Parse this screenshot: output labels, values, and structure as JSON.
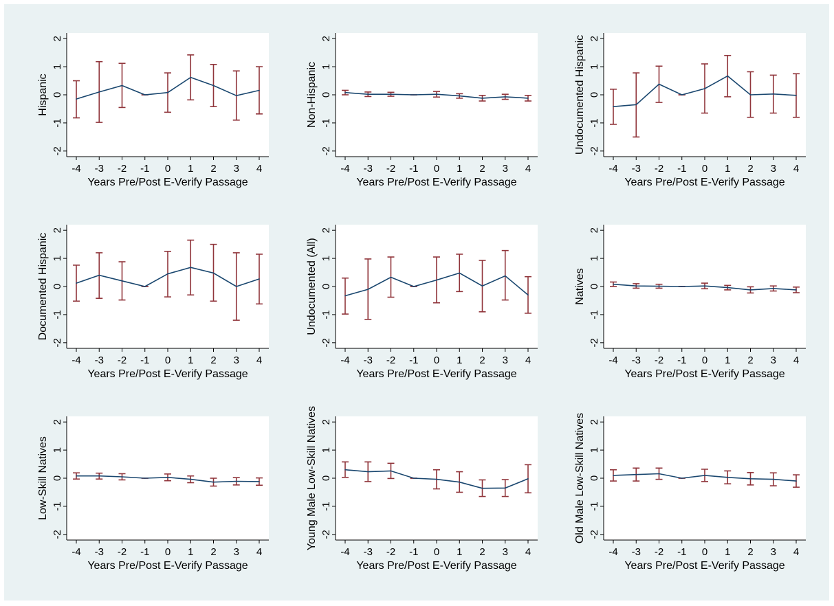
{
  "colors": {
    "outer_background": "#ffffff",
    "graph_region": "#eaf2f3",
    "plot_region": "#ffffff",
    "line": "#1a476f",
    "error_bars": "#90353b",
    "text": "#000000"
  },
  "chart_data": [
    {
      "type": "line",
      "error_bars": true,
      "ylabel": "Hispanic",
      "xlabel": "Years Pre/Post E-Verify Passage",
      "x": [
        -4,
        -3,
        -2,
        -1,
        0,
        1,
        2,
        3,
        4
      ],
      "x_tick_labels": [
        "-4",
        "-3",
        "-2",
        "-1",
        "0",
        "1",
        "2",
        "3",
        "4"
      ],
      "y_tick_values": [
        2,
        1,
        0,
        -1,
        -2
      ],
      "y_tick_labels": [
        "2",
        "1",
        "0",
        "-1",
        "-2"
      ],
      "ylim": [
        -2.2,
        2.2
      ],
      "grid": false,
      "values": [
        -0.15,
        0.1,
        0.33,
        0.0,
        0.08,
        0.62,
        0.33,
        -0.03,
        0.16
      ],
      "ci_low": [
        -0.82,
        -0.98,
        -0.45,
        0.0,
        -0.62,
        -0.18,
        -0.42,
        -0.9,
        -0.68
      ],
      "ci_high": [
        0.5,
        1.18,
        1.12,
        0.0,
        0.78,
        1.42,
        1.08,
        0.85,
        1.0
      ]
    },
    {
      "type": "line",
      "error_bars": true,
      "ylabel": "Non-Hispanic",
      "xlabel": "Years Pre/Post E-Verify Passage",
      "x": [
        -4,
        -3,
        -2,
        -1,
        0,
        1,
        2,
        3,
        4
      ],
      "x_tick_labels": [
        "-4",
        "-3",
        "-2",
        "-1",
        "0",
        "1",
        "2",
        "3",
        "4"
      ],
      "y_tick_values": [
        2,
        1,
        0,
        -1,
        -2
      ],
      "y_tick_labels": [
        "2",
        "1",
        "0",
        "-1",
        "-2"
      ],
      "ylim": [
        -2.2,
        2.2
      ],
      "grid": false,
      "values": [
        0.08,
        0.02,
        0.02,
        0.0,
        0.02,
        -0.04,
        -0.12,
        -0.07,
        -0.12
      ],
      "ci_low": [
        0.0,
        -0.06,
        -0.05,
        0.0,
        -0.08,
        -0.12,
        -0.22,
        -0.16,
        -0.22
      ],
      "ci_high": [
        0.16,
        0.1,
        0.09,
        0.0,
        0.12,
        0.04,
        -0.02,
        0.02,
        -0.02
      ]
    },
    {
      "type": "line",
      "error_bars": true,
      "ylabel": "Undocumented Hispanic",
      "xlabel": "Years Pre/Post E-Verify Passage",
      "x": [
        -4,
        -3,
        -2,
        -1,
        0,
        1,
        2,
        3,
        4
      ],
      "x_tick_labels": [
        "-4",
        "-3",
        "-2",
        "-1",
        "0",
        "1",
        "2",
        "3",
        "4"
      ],
      "y_tick_values": [
        2,
        1,
        0,
        -1,
        -2
      ],
      "y_tick_labels": [
        "2",
        "1",
        "0",
        "-1",
        "-2"
      ],
      "ylim": [
        -2.2,
        2.2
      ],
      "grid": false,
      "values": [
        -0.42,
        -0.35,
        0.38,
        0.0,
        0.22,
        0.67,
        0.0,
        0.03,
        -0.02
      ],
      "ci_low": [
        -1.05,
        -1.5,
        -0.27,
        0.0,
        -0.65,
        -0.07,
        -0.8,
        -0.65,
        -0.8
      ],
      "ci_high": [
        0.2,
        0.78,
        1.02,
        0.0,
        1.1,
        1.4,
        0.82,
        0.7,
        0.75
      ]
    },
    {
      "type": "line",
      "error_bars": true,
      "ylabel": "Documented Hispanic",
      "xlabel": "Years Pre/Post E-Verify Passage",
      "x": [
        -4,
        -3,
        -2,
        -1,
        0,
        1,
        2,
        3,
        4
      ],
      "x_tick_labels": [
        "-4",
        "-3",
        "-2",
        "-1",
        "0",
        "1",
        "2",
        "3",
        "4"
      ],
      "y_tick_values": [
        2,
        1,
        0,
        -1,
        -2
      ],
      "y_tick_labels": [
        "2",
        "1",
        "0",
        "-1",
        "-2"
      ],
      "ylim": [
        -2.2,
        2.2
      ],
      "grid": false,
      "values": [
        0.12,
        0.4,
        0.2,
        0.0,
        0.45,
        0.68,
        0.48,
        0.0,
        0.27
      ],
      "ci_low": [
        -0.52,
        -0.42,
        -0.48,
        0.0,
        -0.37,
        -0.3,
        -0.52,
        -1.2,
        -0.62
      ],
      "ci_high": [
        0.76,
        1.2,
        0.88,
        0.0,
        1.25,
        1.65,
        1.5,
        1.2,
        1.15
      ]
    },
    {
      "type": "line",
      "error_bars": true,
      "ylabel": "Undocumented (All)",
      "xlabel": "Years Pre/Post E-Verify Passage",
      "x": [
        -4,
        -3,
        -2,
        -1,
        0,
        1,
        2,
        3,
        4
      ],
      "x_tick_labels": [
        "-4",
        "-3",
        "-2",
        "-1",
        "0",
        "1",
        "2",
        "3",
        "4"
      ],
      "y_tick_values": [
        2,
        1,
        0,
        -1,
        -2
      ],
      "y_tick_labels": [
        "2",
        "1",
        "0",
        "-1",
        "-2"
      ],
      "ylim": [
        -2.2,
        2.2
      ],
      "grid": false,
      "values": [
        -0.33,
        -0.1,
        0.33,
        0.0,
        0.23,
        0.48,
        0.02,
        0.38,
        -0.3
      ],
      "ci_low": [
        -0.98,
        -1.17,
        -0.38,
        0.0,
        -0.58,
        -0.18,
        -0.9,
        -0.48,
        -0.95
      ],
      "ci_high": [
        0.3,
        0.98,
        1.05,
        0.0,
        1.05,
        1.15,
        0.93,
        1.28,
        0.35
      ]
    },
    {
      "type": "line",
      "error_bars": true,
      "ylabel": "Natives",
      "xlabel": "Years Pre/Post E-Verify Passage",
      "x": [
        -4,
        -3,
        -2,
        -1,
        0,
        1,
        2,
        3,
        4
      ],
      "x_tick_labels": [
        "-4",
        "-3",
        "-2",
        "-1",
        "0",
        "1",
        "2",
        "3",
        "4"
      ],
      "y_tick_values": [
        2,
        1,
        0,
        -1,
        -2
      ],
      "y_tick_labels": [
        "2",
        "1",
        "0",
        "-1",
        "-2"
      ],
      "ylim": [
        -2.2,
        2.2
      ],
      "grid": false,
      "values": [
        0.08,
        0.02,
        0.01,
        0.0,
        0.02,
        -0.04,
        -0.12,
        -0.07,
        -0.12
      ],
      "ci_low": [
        0.0,
        -0.06,
        -0.06,
        0.0,
        -0.08,
        -0.12,
        -0.23,
        -0.16,
        -0.22
      ],
      "ci_high": [
        0.16,
        0.1,
        0.08,
        0.0,
        0.12,
        0.04,
        -0.01,
        0.02,
        -0.02
      ]
    },
    {
      "type": "line",
      "error_bars": true,
      "ylabel": "Low-Skill Natives",
      "xlabel": "Years Pre/Post E-Verify Passage",
      "x": [
        -4,
        -3,
        -2,
        -1,
        0,
        1,
        2,
        3,
        4
      ],
      "x_tick_labels": [
        "-4",
        "-3",
        "-2",
        "-1",
        "0",
        "1",
        "2",
        "3",
        "4"
      ],
      "y_tick_values": [
        2,
        1,
        0,
        -1,
        -2
      ],
      "y_tick_labels": [
        "2",
        "1",
        "0",
        "-1",
        "-2"
      ],
      "ylim": [
        -2.2,
        2.2
      ],
      "grid": false,
      "values": [
        0.08,
        0.08,
        0.05,
        0.0,
        0.03,
        -0.04,
        -0.14,
        -0.11,
        -0.12
      ],
      "ci_low": [
        -0.03,
        -0.03,
        -0.06,
        0.0,
        -0.09,
        -0.16,
        -0.28,
        -0.24,
        -0.25
      ],
      "ci_high": [
        0.19,
        0.18,
        0.16,
        0.0,
        0.15,
        0.08,
        0.0,
        0.02,
        0.01
      ]
    },
    {
      "type": "line",
      "error_bars": true,
      "ylabel": "Young Male  Low-Skill Natives",
      "xlabel": "Years Pre/Post E-Verify Passage",
      "x": [
        -4,
        -3,
        -2,
        -1,
        0,
        1,
        2,
        3,
        4
      ],
      "x_tick_labels": [
        "-4",
        "-3",
        "-2",
        "-1",
        "0",
        "1",
        "2",
        "3",
        "4"
      ],
      "y_tick_values": [
        2,
        1,
        0,
        -1,
        -2
      ],
      "y_tick_labels": [
        "2",
        "1",
        "0",
        "-1",
        "-2"
      ],
      "ylim": [
        -2.2,
        2.2
      ],
      "grid": false,
      "values": [
        0.3,
        0.23,
        0.26,
        0.0,
        -0.04,
        -0.14,
        -0.36,
        -0.35,
        -0.02
      ],
      "ci_low": [
        0.03,
        -0.12,
        -0.01,
        0.0,
        -0.38,
        -0.5,
        -0.65,
        -0.65,
        -0.52
      ],
      "ci_high": [
        0.58,
        0.58,
        0.53,
        0.0,
        0.3,
        0.23,
        -0.06,
        -0.05,
        0.48
      ]
    },
    {
      "type": "line",
      "error_bars": true,
      "ylabel": "Old Male Low-Skill Natives",
      "xlabel": "Years Pre/Post E-Verify Passage",
      "x": [
        -4,
        -3,
        -2,
        -1,
        0,
        1,
        2,
        3,
        4
      ],
      "x_tick_labels": [
        "-4",
        "-3",
        "-2",
        "-1",
        "0",
        "1",
        "2",
        "3",
        "4"
      ],
      "y_tick_values": [
        2,
        1,
        0,
        -1,
        -2
      ],
      "y_tick_labels": [
        "2",
        "1",
        "0",
        "-1",
        "-2"
      ],
      "ylim": [
        -2.2,
        2.2
      ],
      "grid": false,
      "values": [
        0.1,
        0.13,
        0.16,
        0.0,
        0.1,
        0.03,
        -0.02,
        -0.04,
        -0.1
      ],
      "ci_low": [
        -0.1,
        -0.1,
        -0.04,
        0.0,
        -0.12,
        -0.2,
        -0.24,
        -0.27,
        -0.32
      ],
      "ci_high": [
        0.3,
        0.36,
        0.36,
        0.0,
        0.32,
        0.26,
        0.2,
        0.19,
        0.12
      ]
    }
  ]
}
